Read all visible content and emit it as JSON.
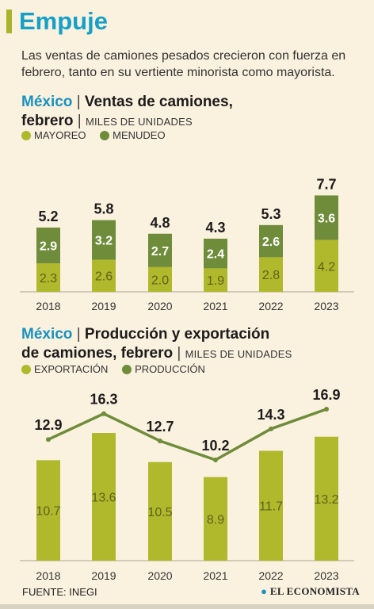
{
  "header": {
    "title": "Empuje",
    "subtitle": "Las ventas de camiones pesados crecieron con fuerza en febrero, tanto en su vertiente minorista como mayorista."
  },
  "colors": {
    "light": "#b0b82c",
    "dark": "#6e8c3a",
    "title": "#16a0c8",
    "mexico": "#1891bf"
  },
  "section1": {
    "prefix": "México",
    "title_line1": "Ventas de camiones,",
    "title_line2": "febrero",
    "unit": "MILES DE UNIDADES",
    "legend": [
      {
        "label": "MAYOREO",
        "color": "#b0b82c"
      },
      {
        "label": "MENUDEO",
        "color": "#6e8c3a"
      }
    ]
  },
  "section2": {
    "prefix": "México",
    "title_line1": "Producción y exportación",
    "title_line2": "de camiones, febrero",
    "unit": "MILES DE UNIDADES",
    "legend": [
      {
        "label": "EXPORTACIÓN",
        "color": "#b0b82c"
      },
      {
        "label": "PRODUCCIÓN",
        "color": "#6e8c3a"
      }
    ]
  },
  "chart_data": [
    {
      "type": "bar",
      "stacked": true,
      "categories": [
        "2018",
        "2019",
        "2020",
        "2021",
        "2022",
        "2023"
      ],
      "series": [
        {
          "name": "MAYOREO",
          "values": [
            2.3,
            2.6,
            2.0,
            1.9,
            2.8,
            4.2
          ]
        },
        {
          "name": "MENUDEO",
          "values": [
            2.9,
            3.2,
            2.7,
            2.4,
            2.6,
            3.6
          ]
        }
      ],
      "totals": [
        "5.2",
        "5.8",
        "4.8",
        "4.3",
        "5.3",
        "7.7"
      ],
      "bottom_labels": [
        "2.3",
        "2.6",
        "2.0",
        "1.9",
        "2.8",
        "4.2"
      ],
      "top_labels": [
        "2.9",
        "3.2",
        "2.7",
        "2.4",
        "2.6",
        "3.6"
      ],
      "grid": false
    },
    {
      "type": "bar",
      "categories": [
        "2018",
        "2019",
        "2020",
        "2021",
        "2022",
        "2023"
      ],
      "series": [
        {
          "name": "EXPORTACIÓN",
          "type": "bar",
          "values": [
            10.7,
            13.6,
            10.5,
            8.9,
            11.7,
            13.2
          ]
        },
        {
          "name": "PRODUCCIÓN",
          "type": "line",
          "values": [
            12.9,
            16.3,
            12.7,
            10.2,
            14.3,
            16.9
          ]
        }
      ],
      "bar_labels": [
        "10.7",
        "13.6",
        "10.5",
        "8.9",
        "11.7",
        "13.2"
      ],
      "line_labels": [
        "12.9",
        "16.3",
        "12.7",
        "10.2",
        "14.3",
        "16.9"
      ],
      "grid": false
    }
  ],
  "footer": {
    "source": "FUENTE: INEGI",
    "brand": "EL ECONOMISTA",
    "brand_icon": "globe-icon"
  }
}
